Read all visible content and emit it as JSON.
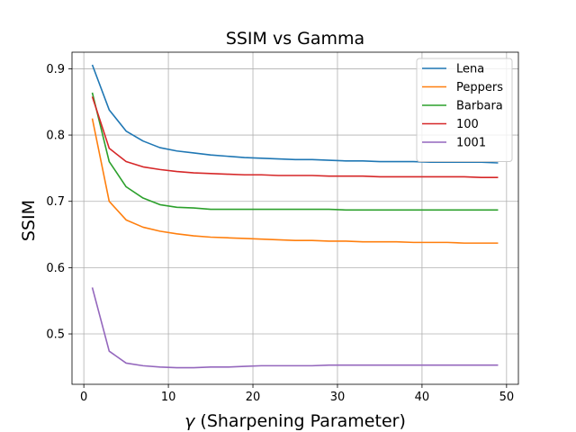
{
  "chart_data": {
    "type": "line",
    "title": "SSIM vs Gamma",
    "xlabel_symbol": "γ",
    "xlabel_text": " (Sharpening Parameter)",
    "ylabel": "SSIM",
    "xlim": [
      -1.4,
      51.4
    ],
    "ylim": [
      0.424,
      0.925
    ],
    "xticks": [
      0,
      10,
      20,
      30,
      40,
      50
    ],
    "yticks": [
      0.5,
      0.6,
      0.7,
      0.8,
      0.9
    ],
    "grid": true,
    "legend_position": "top-right",
    "x": [
      1,
      3,
      5,
      7,
      9,
      11,
      13,
      15,
      17,
      19,
      21,
      23,
      25,
      27,
      29,
      31,
      33,
      35,
      37,
      39,
      41,
      43,
      45,
      47,
      49
    ],
    "series": [
      {
        "name": "Lena",
        "color": "#1f77b4",
        "values": [
          0.906,
          0.838,
          0.806,
          0.791,
          0.781,
          0.776,
          0.773,
          0.77,
          0.768,
          0.766,
          0.765,
          0.764,
          0.763,
          0.763,
          0.762,
          0.761,
          0.761,
          0.76,
          0.76,
          0.76,
          0.759,
          0.759,
          0.759,
          0.759,
          0.758
        ]
      },
      {
        "name": "Peppers",
        "color": "#ff7f0e",
        "values": [
          0.825,
          0.7,
          0.672,
          0.661,
          0.655,
          0.651,
          0.648,
          0.646,
          0.645,
          0.644,
          0.643,
          0.642,
          0.641,
          0.641,
          0.64,
          0.64,
          0.639,
          0.639,
          0.639,
          0.638,
          0.638,
          0.638,
          0.637,
          0.637,
          0.637
        ]
      },
      {
        "name": "Barbara",
        "color": "#2ca02c",
        "values": [
          0.864,
          0.76,
          0.722,
          0.705,
          0.695,
          0.691,
          0.69,
          0.688,
          0.688,
          0.688,
          0.688,
          0.688,
          0.688,
          0.688,
          0.688,
          0.687,
          0.687,
          0.687,
          0.687,
          0.687,
          0.687,
          0.687,
          0.687,
          0.687,
          0.687
        ]
      },
      {
        "name": "100",
        "color": "#d62728",
        "values": [
          0.858,
          0.78,
          0.76,
          0.752,
          0.748,
          0.745,
          0.743,
          0.742,
          0.741,
          0.74,
          0.74,
          0.739,
          0.739,
          0.739,
          0.738,
          0.738,
          0.738,
          0.737,
          0.737,
          0.737,
          0.737,
          0.737,
          0.737,
          0.736,
          0.736
        ]
      },
      {
        "name": "1001",
        "color": "#9467bd",
        "values": [
          0.57,
          0.474,
          0.456,
          0.452,
          0.45,
          0.449,
          0.449,
          0.45,
          0.45,
          0.451,
          0.452,
          0.452,
          0.452,
          0.452,
          0.453,
          0.453,
          0.453,
          0.453,
          0.453,
          0.453,
          0.453,
          0.453,
          0.453,
          0.453,
          0.453
        ]
      }
    ]
  }
}
